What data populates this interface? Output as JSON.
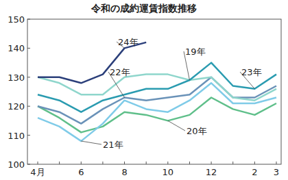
{
  "chart_data": {
    "type": "line",
    "title": "令和の成約運賃指数推移",
    "categories": [
      "4月",
      null,
      "6",
      null,
      "8",
      null,
      "10",
      null,
      "12",
      null,
      "2",
      "3"
    ],
    "ylim": [
      100,
      150
    ],
    "yticks": [
      100,
      110,
      120,
      130,
      140,
      150
    ],
    "grid": false,
    "series": [
      {
        "name": "24年",
        "color": "#2b3f7a",
        "values": [
          130,
          130,
          128,
          131,
          140,
          142,
          null,
          null,
          null,
          null,
          null,
          null
        ]
      },
      {
        "name": "23年",
        "color": "#2a9bb0",
        "values": [
          124,
          122,
          118,
          122,
          124,
          126,
          126,
          129,
          135,
          127,
          126,
          131
        ]
      },
      {
        "name": "19年",
        "color": "#8fd6cc",
        "values": [
          130,
          128,
          124,
          124,
          130,
          131,
          131,
          129,
          130,
          123,
          122,
          126
        ]
      },
      {
        "name": "22年",
        "color": "#6a92b8",
        "values": [
          120,
          118,
          114,
          119,
          123,
          122,
          123,
          124,
          130,
          123,
          123,
          127
        ]
      },
      {
        "name": "21年",
        "color": "#7fcbe8",
        "values": [
          116,
          113,
          108,
          114,
          122,
          119,
          118,
          122,
          128,
          121,
          121,
          123
        ]
      },
      {
        "name": "20年",
        "color": "#5fbf8a",
        "values": [
          120,
          116,
          111,
          113,
          118,
          117,
          115,
          117,
          123,
          119,
          117,
          121
        ]
      }
    ]
  }
}
